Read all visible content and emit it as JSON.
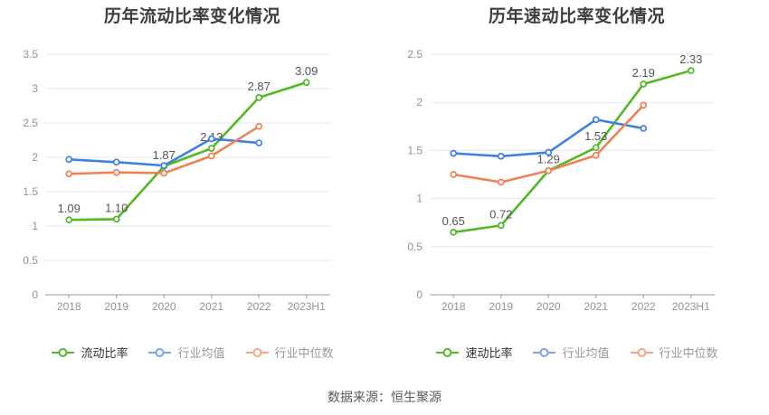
{
  "footer": {
    "source_text": "数据来源：恒生聚源"
  },
  "style": {
    "background": "#ffffff",
    "grid_color": "#e3e7f1",
    "axis_color": "#999999",
    "tick_label_color": "#8f9399",
    "data_label_color": "#555555",
    "title_color": "#3e3e3e"
  },
  "chart_data": [
    {
      "type": "line",
      "title": "历年流动比率变化情况",
      "categories": [
        "2018",
        "2019",
        "2020",
        "2021",
        "2022",
        "2023H1"
      ],
      "ylim": [
        0,
        3.5
      ],
      "ytick_step": 0.5,
      "ytick_labels": [
        "0",
        "0.5",
        "1",
        "1.5",
        "2",
        "2.5",
        "3",
        "3.5"
      ],
      "grid": true,
      "legend_position": "bottom",
      "series": [
        {
          "name": "流动比率",
          "color": "#52b826",
          "values": [
            1.09,
            1.1,
            1.87,
            2.13,
            2.87,
            3.09
          ],
          "point_labels": [
            "1.09",
            "1.10",
            "1.87",
            "2.13",
            "2.87",
            "3.09"
          ]
        },
        {
          "name": "行业均值",
          "color": "#4080e0",
          "values": [
            1.97,
            1.93,
            1.88,
            2.27,
            2.21,
            null
          ]
        },
        {
          "name": "行业中位数",
          "color": "#f08155",
          "values": [
            1.76,
            1.78,
            1.77,
            2.02,
            2.45,
            null
          ]
        }
      ],
      "legend": [
        {
          "label": "流动比率",
          "marker_color": "#52b826",
          "text_color": "#333333"
        },
        {
          "label": "行业均值",
          "marker_color": "#7ca4ea",
          "text_color": "#999999"
        },
        {
          "label": "行业中位数",
          "marker_color": "#f4a585",
          "text_color": "#999999"
        }
      ]
    },
    {
      "type": "line",
      "title": "历年速动比率变化情况",
      "categories": [
        "2018",
        "2019",
        "2020",
        "2021",
        "2022",
        "2023H1"
      ],
      "ylim": [
        0,
        2.5
      ],
      "ytick_step": 0.5,
      "ytick_labels": [
        "0",
        "0.5",
        "1",
        "1.5",
        "2",
        "2.5"
      ],
      "grid": true,
      "legend_position": "bottom",
      "series": [
        {
          "name": "速动比率",
          "color": "#52b826",
          "values": [
            0.65,
            0.72,
            1.29,
            1.53,
            2.19,
            2.33
          ],
          "point_labels": [
            "0.65",
            "0.72",
            "1.29",
            "1.53",
            "2.19",
            "2.33"
          ]
        },
        {
          "name": "行业均值",
          "color": "#4080e0",
          "values": [
            1.47,
            1.44,
            1.48,
            1.82,
            1.73,
            null
          ]
        },
        {
          "name": "行业中位数",
          "color": "#f08155",
          "values": [
            1.25,
            1.17,
            1.29,
            1.45,
            1.97,
            null
          ]
        }
      ],
      "legend": [
        {
          "label": "速动比率",
          "marker_color": "#52b826",
          "text_color": "#333333"
        },
        {
          "label": "行业均值",
          "marker_color": "#7ca4ea",
          "text_color": "#999999"
        },
        {
          "label": "行业中位数",
          "marker_color": "#f4a585",
          "text_color": "#999999"
        }
      ]
    }
  ]
}
